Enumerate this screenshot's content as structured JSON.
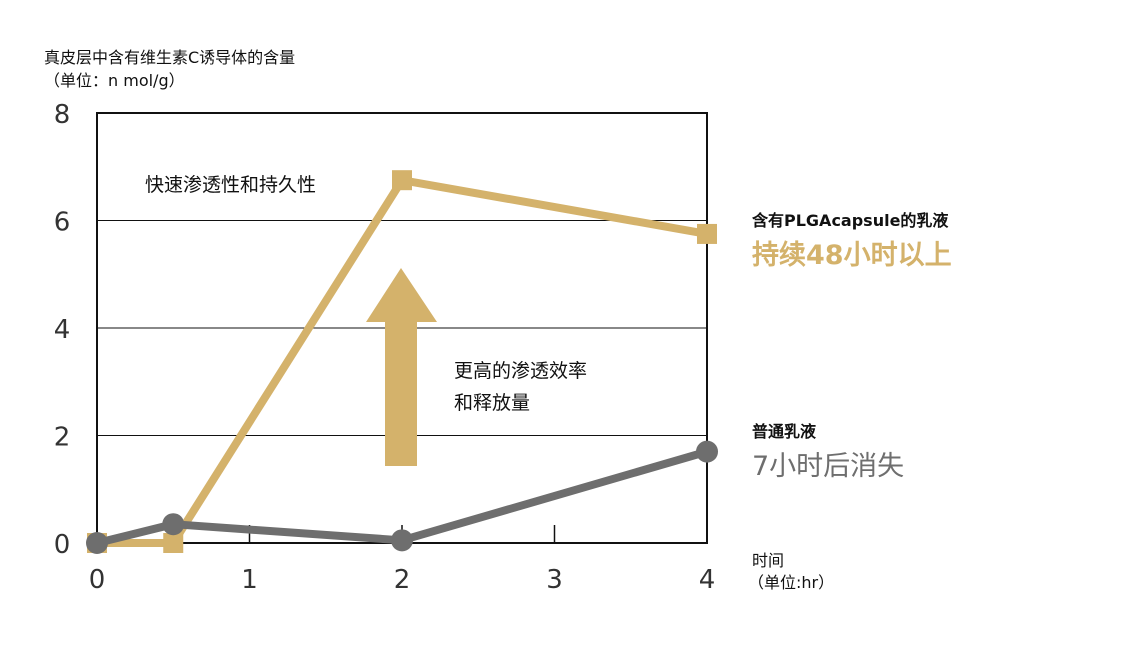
{
  "chart_data": {
    "type": "line",
    "ylabel_line1": "真皮层中含有维生素C诱导体的含量",
    "ylabel_line2": "（单位：n mol/g）",
    "xlabel_line1": "时间",
    "xlabel_line2": "（单位:hr）",
    "xlim": [
      0,
      4
    ],
    "ylim": [
      0,
      8
    ],
    "x_ticks": [
      "0",
      "1",
      "2",
      "3",
      "4"
    ],
    "y_ticks": [
      "0",
      "2",
      "4",
      "6",
      "8"
    ],
    "grid": "horizontal",
    "series": [
      {
        "name": "含有PLGAcapsule的乳液",
        "note": "持续48小时以上",
        "color": "#d4b26b",
        "marker": "square",
        "x": [
          0,
          0.5,
          2,
          4
        ],
        "y": [
          0,
          0,
          6.75,
          5.75
        ]
      },
      {
        "name": "普通乳液",
        "note": "7小时后消失",
        "color": "#6e6e6e",
        "marker": "circle",
        "x": [
          0,
          0.5,
          2,
          4
        ],
        "y": [
          0,
          0.35,
          0.05,
          1.7
        ]
      }
    ],
    "annotations": {
      "top_text": "快速渗透性和持久性",
      "arrow_text_line1": "更高的渗透效率",
      "arrow_text_line2": "和释放量"
    }
  }
}
